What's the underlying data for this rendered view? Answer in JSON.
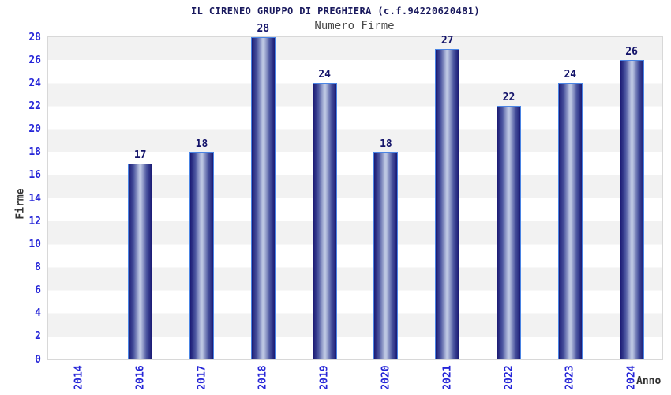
{
  "title": "IL CIRENEO GRUPPO DI PREGHIERA (c.f.94220620481)",
  "subtitle": "Numero Firme",
  "x_axis_title": "Anno",
  "y_axis_title": "Firme",
  "chart_data": {
    "type": "bar",
    "title": "IL CIRENEO GRUPPO DI PREGHIERA (c.f.94220620481)",
    "subtitle": "Numero Firme",
    "xlabel": "Anno",
    "ylabel": "Firme",
    "categories": [
      "2014",
      "2016",
      "2017",
      "2018",
      "2019",
      "2020",
      "2021",
      "2022",
      "2023",
      "2024"
    ],
    "values": [
      null,
      17,
      18,
      28,
      24,
      18,
      27,
      22,
      24,
      26
    ],
    "value_labels": [
      "",
      "17",
      "18",
      "28",
      "24",
      "18",
      "27",
      "22",
      "24",
      "26"
    ],
    "ylim": [
      0,
      28
    ],
    "ytick_step": 2,
    "yticks": [
      0,
      2,
      4,
      6,
      8,
      10,
      12,
      14,
      16,
      18,
      20,
      22,
      24,
      26,
      28
    ],
    "grid": "alternating-horizontal-bands",
    "legend": false,
    "bar_style": "cylinder-gradient",
    "x_labels_rotation_deg": -90
  },
  "colors": {
    "title": "#1a1a5e",
    "subtitle": "#4a4a4a",
    "axis_tick_label": "#2626d8",
    "value_label": "#14146a",
    "axis_title": "#333333",
    "bar_dark": "#1a1a74",
    "bar_mid": "#4a549f",
    "bar_light": "#bcc6e2",
    "bar_outline": "#4a84e4",
    "band_gray": "#f2f2f2",
    "band_white": "#ffffff",
    "plot_border": "#d8d8d8"
  }
}
